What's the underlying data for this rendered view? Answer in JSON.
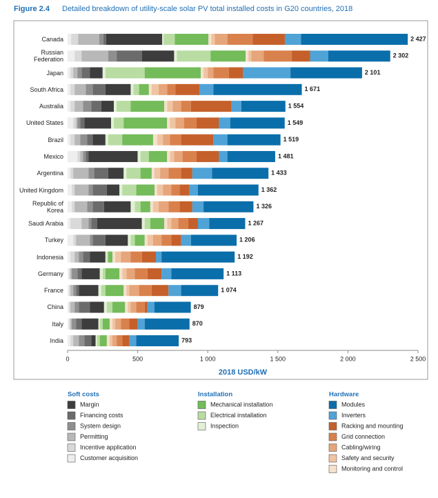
{
  "chart_data": {
    "type": "stacked_bar_horizontal",
    "figure_label": "Figure 2.4",
    "title": "Detailed breakdown of utility-scale solar PV total installed costs in G20 countries, 2018",
    "xlabel": "2018 USD/kW",
    "xlim": [
      0,
      2500
    ],
    "xticks": [
      0,
      500,
      {
        "value": 1000,
        "label": "1 000"
      },
      {
        "value": 1500,
        "label": "1 500"
      },
      {
        "value": 2000,
        "label": "2 000"
      },
      {
        "value": 2500,
        "label": "2 500"
      }
    ],
    "categories": [
      "Canada",
      "Russian Federation",
      "Japan",
      "South Africa",
      "Australia",
      "United States",
      "Brazil",
      "Mexico",
      "Argentina",
      "United Kingdom",
      "Republic of Korea",
      "Saudi Arabia",
      "Turkey",
      "Indonesia",
      "Germany",
      "France",
      "China",
      "Italy",
      "India"
    ],
    "totals": [
      2427,
      2302,
      2101,
      1671,
      1554,
      1549,
      1519,
      1481,
      1433,
      1362,
      1326,
      1267,
      1206,
      1192,
      1113,
      1074,
      879,
      870,
      793
    ],
    "total_labels": [
      "2 427",
      "2 302",
      "2 101",
      "1 671",
      "1 554",
      "1 549",
      "1 519",
      "1 481",
      "1 433",
      "1 362",
      "1 326",
      "1 267",
      "1 206",
      "1 192",
      "1 113",
      "1 074",
      "879",
      "870",
      "793"
    ],
    "legend_groups": [
      "Soft costs",
      "Installation",
      "Hardware"
    ],
    "series": [
      {
        "name": "Margin",
        "group": "Soft costs",
        "color": "#3d3d3d",
        "values": [
          400,
          230,
          90,
          180,
          90,
          190,
          90,
          350,
          110,
          90,
          190,
          320,
          160,
          110,
          130,
          140,
          100,
          120,
          30
        ]
      },
      {
        "name": "Financing costs",
        "group": "Soft costs",
        "color": "#6b6b6b",
        "values": [
          20,
          180,
          60,
          90,
          70,
          30,
          40,
          20,
          100,
          100,
          80,
          40,
          90,
          50,
          30,
          20,
          80,
          40,
          50
        ]
      },
      {
        "name": "System design",
        "group": "Soft costs",
        "color": "#8f8f8f",
        "values": [
          30,
          60,
          30,
          50,
          60,
          20,
          50,
          20,
          40,
          30,
          40,
          20,
          20,
          30,
          40,
          20,
          30,
          30,
          40
        ]
      },
      {
        "name": "Permitting",
        "group": "Soft costs",
        "color": "#b8b8b8",
        "values": [
          150,
          190,
          30,
          80,
          60,
          10,
          40,
          20,
          110,
          100,
          90,
          50,
          100,
          30,
          10,
          20,
          30,
          10,
          40
        ]
      },
      {
        "name": "Incentive application",
        "group": "Soft costs",
        "color": "#d9d9d9",
        "values": [
          50,
          50,
          20,
          30,
          30,
          20,
          30,
          20,
          20,
          20,
          20,
          80,
          20,
          30,
          10,
          10,
          10,
          10,
          20
        ]
      },
      {
        "name": "Customer acquisition",
        "group": "Soft costs",
        "color": "#eeeeee",
        "values": [
          25,
          50,
          20,
          20,
          20,
          40,
          20,
          70,
          20,
          30,
          30,
          20,
          40,
          20,
          10,
          10,
          10,
          10,
          20
        ]
      },
      {
        "name": "Mechanical installation",
        "group": "Installation",
        "color": "#74bb5a",
        "values": [
          240,
          250,
          400,
          70,
          240,
          310,
          220,
          130,
          80,
          130,
          70,
          100,
          70,
          30,
          100,
          130,
          90,
          50,
          50
        ]
      },
      {
        "name": "Electrical installation",
        "group": "Installation",
        "color": "#b9dca2",
        "values": [
          80,
          240,
          280,
          40,
          100,
          70,
          100,
          60,
          100,
          100,
          40,
          40,
          30,
          10,
          20,
          30,
          40,
          20,
          20
        ]
      },
      {
        "name": "Inspection",
        "group": "Installation",
        "color": "#e2f0d6",
        "values": [
          10,
          20,
          20,
          20,
          20,
          20,
          20,
          20,
          20,
          20,
          30,
          20,
          20,
          10,
          20,
          20,
          20,
          10,
          10
        ]
      },
      {
        "name": "Modules",
        "group": "Hardware",
        "color": "#0a6eaa",
        "values": [
          762,
          442,
          511,
          631,
          314,
          389,
          379,
          341,
          403,
          432,
          356,
          257,
          326,
          522,
          373,
          264,
          259,
          320,
          303
        ]
      },
      {
        "name": "Inverters",
        "group": "Hardware",
        "color": "#4fa3d6",
        "values": [
          115,
          130,
          340,
          100,
          70,
          80,
          100,
          60,
          140,
          60,
          80,
          80,
          70,
          40,
          70,
          90,
          50,
          50,
          50
        ]
      },
      {
        "name": "Racking and mounting",
        "group": "Hardware",
        "color": "#c5602b",
        "values": [
          230,
          130,
          100,
          170,
          290,
          160,
          230,
          160,
          80,
          70,
          90,
          70,
          70,
          100,
          100,
          120,
          20,
          60,
          50
        ]
      },
      {
        "name": "Grid connection",
        "group": "Hardware",
        "color": "#d9814c",
        "values": [
          180,
          200,
          110,
          60,
          70,
          90,
          80,
          100,
          90,
          60,
          80,
          70,
          70,
          80,
          90,
          90,
          60,
          60,
          40
        ]
      },
      {
        "name": "Cabling/wiring",
        "group": "Hardware",
        "color": "#e6a57a",
        "values": [
          90,
          90,
          40,
          60,
          60,
          60,
          50,
          60,
          60,
          60,
          70,
          50,
          60,
          70,
          60,
          70,
          40,
          40,
          30
        ]
      },
      {
        "name": "Safety and security",
        "group": "Hardware",
        "color": "#efc4a2",
        "values": [
          25,
          20,
          30,
          50,
          40,
          40,
          40,
          30,
          40,
          40,
          40,
          30,
          40,
          40,
          30,
          20,
          20,
          20,
          20
        ]
      },
      {
        "name": "Monitoring and control",
        "group": "Hardware",
        "color": "#f5e1cc",
        "values": [
          20,
          20,
          20,
          20,
          20,
          20,
          30,
          20,
          20,
          20,
          20,
          20,
          20,
          20,
          20,
          20,
          20,
          20,
          20
        ]
      }
    ]
  }
}
